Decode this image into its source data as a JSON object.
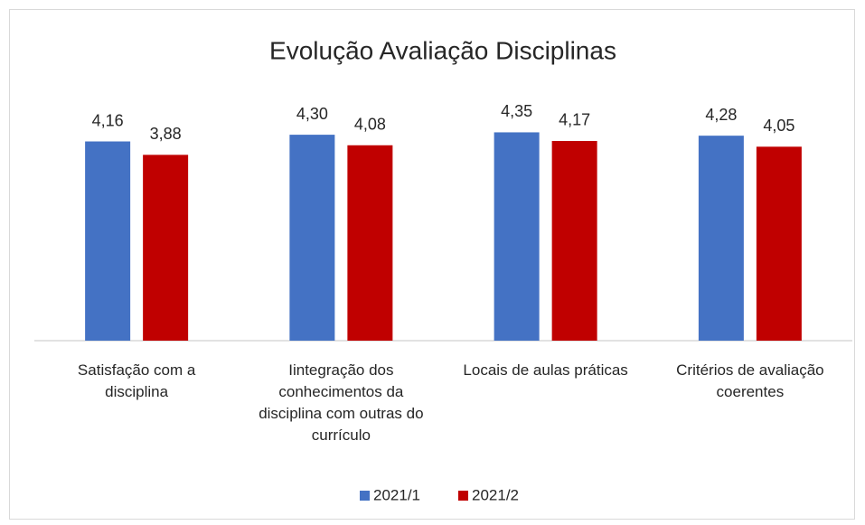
{
  "chart_data": {
    "type": "bar",
    "title": "Evolução Avaliação Disciplinas",
    "categories": [
      "Satisfação com a disciplina",
      "Iintegração dos conhecimentos da disciplina com outras do currículo",
      "Locais de aulas práticas",
      "Critérios de avaliação coerentes"
    ],
    "series": [
      {
        "name": "2021/1",
        "color": "#4472c4",
        "values": [
          4.16,
          4.3,
          4.35,
          4.28
        ],
        "value_labels": [
          "4,16",
          "4,30",
          "4,35",
          "4,28"
        ]
      },
      {
        "name": "2021/2",
        "color": "#c00000",
        "values": [
          3.88,
          4.08,
          4.17,
          4.05
        ],
        "value_labels": [
          "3,88",
          "4,08",
          "4,17",
          "4,05"
        ]
      }
    ],
    "ylim": [
      0,
      5
    ],
    "legend": "bottom"
  }
}
